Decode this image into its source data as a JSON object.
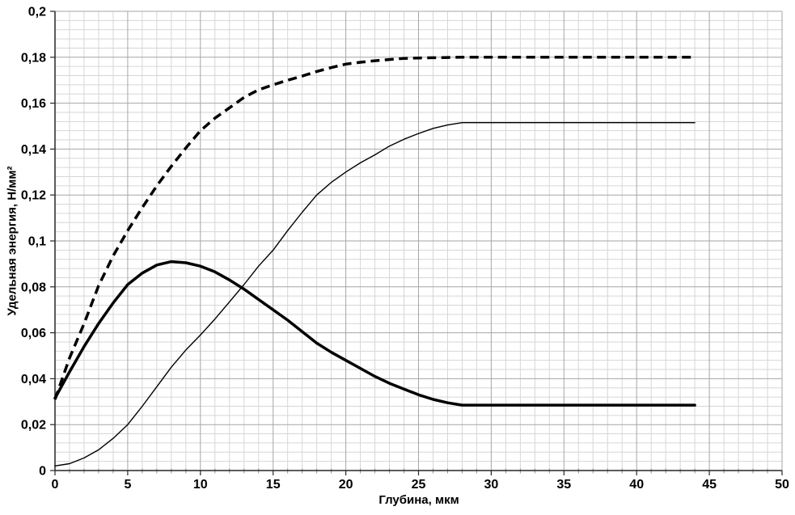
{
  "chart_data": {
    "type": "line",
    "title": "",
    "xlabel": "Глубина, мкм",
    "ylabel": "Удельная энергия, Н/мм²",
    "xlim": [
      0,
      50
    ],
    "ylim": [
      0,
      0.2
    ],
    "x_major_step": 5,
    "x_minor_step": 1,
    "y_major_step": 0.02,
    "y_minor_step": 0.004,
    "x_tick_labels": [
      "0",
      "5",
      "10",
      "15",
      "20",
      "25",
      "30",
      "35",
      "40",
      "45",
      "50"
    ],
    "y_tick_labels": [
      "0",
      "0,02",
      "0,04",
      "0,06",
      "0,08",
      "0,1",
      "0,12",
      "0,14",
      "0,16",
      "0,18",
      "0,2"
    ],
    "grid": true,
    "legend": "none",
    "x": [
      0,
      1,
      2,
      3,
      4,
      5,
      6,
      7,
      8,
      9,
      10,
      11,
      12,
      13,
      14,
      15,
      16,
      17,
      18,
      19,
      20,
      21,
      22,
      23,
      24,
      25,
      26,
      27,
      28,
      29,
      30,
      31,
      32,
      33,
      34,
      35,
      36,
      37,
      38,
      39,
      40,
      41,
      42,
      43,
      44
    ],
    "series": [
      {
        "name": "dashed-thick-curve",
        "line_style": "dashed",
        "stroke_width": 3.5,
        "color": "#000000",
        "values": [
          0.031,
          0.049,
          0.064,
          0.0805,
          0.0935,
          0.1045,
          0.1145,
          0.124,
          0.1325,
          0.1405,
          0.148,
          0.1535,
          0.158,
          0.1625,
          0.1658,
          0.168,
          0.17,
          0.1718,
          0.1738,
          0.1755,
          0.177,
          0.1778,
          0.1785,
          0.179,
          0.1795,
          0.1797,
          0.1798,
          0.1799,
          0.18,
          0.18,
          0.18,
          0.18,
          0.18,
          0.18,
          0.18,
          0.18,
          0.18,
          0.18,
          0.18,
          0.18,
          0.18,
          0.18,
          0.18,
          0.18,
          0.18
        ]
      },
      {
        "name": "thin-solid-curve",
        "line_style": "solid",
        "stroke_width": 1.4,
        "color": "#000000",
        "values": [
          0.002,
          0.003,
          0.0055,
          0.009,
          0.014,
          0.02,
          0.028,
          0.0365,
          0.045,
          0.0525,
          0.059,
          0.066,
          0.0735,
          0.081,
          0.089,
          0.096,
          0.1045,
          0.1125,
          0.12,
          0.1255,
          0.13,
          0.134,
          0.1375,
          0.1413,
          0.1443,
          0.1468,
          0.149,
          0.1505,
          0.1515,
          0.1515,
          0.1515,
          0.1515,
          0.1515,
          0.1515,
          0.1515,
          0.1515,
          0.1515,
          0.1515,
          0.1515,
          0.1515,
          0.1515,
          0.1515,
          0.1515,
          0.1515,
          0.1515
        ]
      },
      {
        "name": "thick-solid-curve",
        "line_style": "solid",
        "stroke_width": 3.5,
        "color": "#000000",
        "values": [
          0.0315,
          0.043,
          0.054,
          0.064,
          0.073,
          0.081,
          0.086,
          0.0895,
          0.091,
          0.0905,
          0.089,
          0.0865,
          0.083,
          0.079,
          0.0745,
          0.07,
          0.0655,
          0.0605,
          0.0555,
          0.0515,
          0.048,
          0.0445,
          0.041,
          0.038,
          0.0355,
          0.033,
          0.031,
          0.0295,
          0.0285,
          0.0285,
          0.0285,
          0.0285,
          0.0285,
          0.0285,
          0.0285,
          0.0285,
          0.0285,
          0.0285,
          0.0285,
          0.0285,
          0.0285,
          0.0285,
          0.0285,
          0.0285,
          0.0285
        ]
      }
    ],
    "styles": {
      "background": "#ffffff",
      "minor_grid_color": "#d6d6d6",
      "major_grid_color": "#a6a6a6",
      "axis_color": "#262626",
      "minor_tick_color": "#8c8c8c",
      "text_color": "#000000"
    }
  }
}
